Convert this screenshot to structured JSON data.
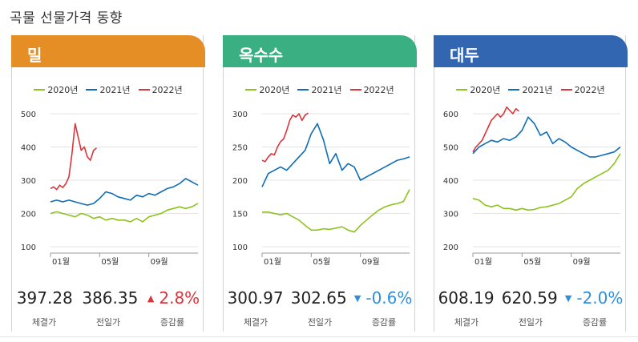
{
  "page": {
    "title": "곡물 선물가격 동향"
  },
  "legend_labels": [
    "2020년",
    "2021년",
    "2022년"
  ],
  "series_colors": {
    "2020년": "#8dc21f",
    "2021년": "#0f6cb6",
    "2022년": "#d9353a"
  },
  "stat_labels": {
    "current": "체결가",
    "previous": "전일가",
    "change": "증감률"
  },
  "cards": [
    {
      "title": "밀",
      "header_color": "#e58e26",
      "current": "397.28",
      "previous": "386.35",
      "change": "2.8%",
      "direction": "up",
      "change_color": "#d9353a"
    },
    {
      "title": "옥수수",
      "header_color": "#3aaf82",
      "current": "300.97",
      "previous": "302.65",
      "change": "-0.6%",
      "direction": "down",
      "change_color": "#2f8fdc"
    },
    {
      "title": "대두",
      "header_color": "#3266b0",
      "current": "608.19",
      "previous": "620.59",
      "change": "-2.0%",
      "direction": "down",
      "change_color": "#2f8fdc"
    }
  ],
  "chart_data": [
    {
      "type": "line",
      "title": "밀",
      "x_ticks": [
        "01월",
        "05월",
        "09월"
      ],
      "x_tick_months": [
        0,
        4,
        8
      ],
      "x_range_months": [
        0,
        12
      ],
      "y_ticks": [
        100,
        200,
        300,
        400,
        500
      ],
      "ylim": [
        100,
        500
      ],
      "grid": true,
      "legend": "top",
      "series": [
        {
          "name": "2020년",
          "x": [
            0,
            0.5,
            1,
            1.5,
            2,
            2.5,
            3,
            3.5,
            4,
            4.5,
            5,
            5.5,
            6,
            6.5,
            7,
            7.5,
            8,
            8.5,
            9,
            9.5,
            10,
            10.5,
            11,
            11.5,
            12
          ],
          "values": [
            200,
            205,
            200,
            195,
            190,
            200,
            195,
            185,
            190,
            180,
            185,
            180,
            180,
            175,
            185,
            175,
            190,
            195,
            200,
            210,
            215,
            220,
            215,
            220,
            230
          ]
        },
        {
          "name": "2021년",
          "x": [
            0,
            0.5,
            1,
            1.5,
            2,
            2.5,
            3,
            3.5,
            4,
            4.5,
            5,
            5.5,
            6,
            6.5,
            7,
            7.5,
            8,
            8.5,
            9,
            9.5,
            10,
            10.5,
            11,
            11.5,
            12
          ],
          "values": [
            235,
            240,
            235,
            240,
            235,
            230,
            225,
            230,
            245,
            265,
            260,
            250,
            245,
            240,
            255,
            250,
            260,
            255,
            265,
            275,
            280,
            290,
            305,
            295,
            285
          ]
        },
        {
          "name": "2022년",
          "x": [
            0,
            0.25,
            0.5,
            0.75,
            1,
            1.25,
            1.5,
            1.75,
            2,
            2.25,
            2.5,
            2.75,
            3,
            3.25,
            3.5,
            3.75
          ],
          "values": [
            275,
            280,
            272,
            285,
            278,
            290,
            310,
            380,
            470,
            430,
            390,
            400,
            370,
            360,
            390,
            397
          ]
        }
      ]
    },
    {
      "type": "line",
      "title": "옥수수",
      "x_ticks": [
        "01월",
        "05월",
        "09월"
      ],
      "x_tick_months": [
        0,
        4,
        8
      ],
      "x_range_months": [
        0,
        12
      ],
      "y_ticks": [
        100,
        150,
        200,
        250,
        300
      ],
      "ylim": [
        100,
        300
      ],
      "grid": true,
      "legend": "top",
      "series": [
        {
          "name": "2020년",
          "x": [
            0,
            0.5,
            1,
            1.5,
            2,
            2.5,
            3,
            3.5,
            4,
            4.5,
            5,
            5.5,
            6,
            6.5,
            7,
            7.5,
            8,
            8.5,
            9,
            9.5,
            10,
            10.5,
            11,
            11.5,
            12
          ],
          "values": [
            152,
            152,
            150,
            148,
            150,
            145,
            140,
            132,
            125,
            125,
            127,
            126,
            128,
            130,
            125,
            122,
            132,
            140,
            148,
            155,
            160,
            163,
            165,
            168,
            186
          ]
        },
        {
          "name": "2021년",
          "x": [
            0,
            0.5,
            1,
            1.5,
            2,
            2.5,
            3,
            3.5,
            4,
            4.5,
            5,
            5.5,
            6,
            6.5,
            7,
            7.5,
            8,
            8.5,
            9,
            9.5,
            10,
            10.5,
            11,
            11.5,
            12
          ],
          "values": [
            190,
            210,
            215,
            220,
            215,
            225,
            235,
            245,
            270,
            285,
            260,
            225,
            240,
            215,
            225,
            220,
            200,
            205,
            210,
            215,
            220,
            225,
            230,
            232,
            235
          ]
        },
        {
          "name": "2022년",
          "x": [
            0,
            0.25,
            0.5,
            0.75,
            1,
            1.25,
            1.5,
            1.75,
            2,
            2.25,
            2.5,
            2.75,
            3,
            3.25,
            3.5,
            3.75
          ],
          "values": [
            230,
            228,
            235,
            240,
            238,
            250,
            258,
            262,
            275,
            290,
            298,
            295,
            300,
            290,
            298,
            301
          ]
        }
      ]
    },
    {
      "type": "line",
      "title": "대두",
      "x_ticks": [
        "01월",
        "05월",
        "09월"
      ],
      "x_tick_months": [
        0,
        4,
        8
      ],
      "x_range_months": [
        0,
        12
      ],
      "y_ticks": [
        200,
        300,
        400,
        500,
        600
      ],
      "ylim": [
        200,
        600
      ],
      "grid": true,
      "legend": "top",
      "series": [
        {
          "name": "2020년",
          "x": [
            0,
            0.5,
            1,
            1.5,
            2,
            2.5,
            3,
            3.5,
            4,
            4.5,
            5,
            5.5,
            6,
            6.5,
            7,
            7.5,
            8,
            8.5,
            9,
            9.5,
            10,
            10.5,
            11,
            11.5,
            12
          ],
          "values": [
            345,
            340,
            325,
            320,
            325,
            315,
            315,
            310,
            315,
            310,
            312,
            318,
            320,
            325,
            330,
            340,
            350,
            375,
            390,
            400,
            410,
            420,
            430,
            450,
            480
          ]
        },
        {
          "name": "2021년",
          "x": [
            0,
            0.5,
            1,
            1.5,
            2,
            2.5,
            3,
            3.5,
            4,
            4.5,
            5,
            5.5,
            6,
            6.5,
            7,
            7.5,
            8,
            8.5,
            9,
            9.5,
            10,
            10.5,
            11,
            11.5,
            12
          ],
          "values": [
            480,
            500,
            510,
            520,
            515,
            525,
            520,
            530,
            550,
            590,
            570,
            535,
            545,
            510,
            525,
            515,
            500,
            490,
            480,
            470,
            470,
            475,
            480,
            485,
            500
          ]
        },
        {
          "name": "2022년",
          "x": [
            0,
            0.25,
            0.5,
            0.75,
            1,
            1.25,
            1.5,
            1.75,
            2,
            2.25,
            2.5,
            2.75,
            3,
            3.25,
            3.5,
            3.75
          ],
          "values": [
            485,
            500,
            510,
            520,
            540,
            560,
            580,
            590,
            600,
            590,
            600,
            620,
            610,
            600,
            615,
            608
          ]
        }
      ]
    }
  ]
}
